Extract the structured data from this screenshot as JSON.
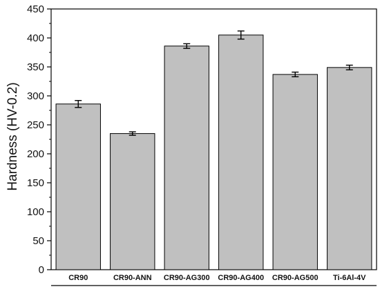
{
  "chart_data": {
    "type": "bar",
    "title": "",
    "xlabel": "",
    "ylabel": "Hardness (HV-0.2)",
    "categories": [
      "CR90",
      "CR90-ANN",
      "CR90-AG300",
      "CR90-AG400",
      "CR90-AG500",
      "Ti-6Al-4V"
    ],
    "values": [
      286,
      235,
      386,
      405,
      337,
      349
    ],
    "errors": [
      6,
      3,
      4,
      7,
      4,
      4
    ],
    "ylim": [
      0,
      450
    ],
    "yticks": [
      0,
      50,
      100,
      150,
      200,
      250,
      300,
      350,
      400,
      450
    ],
    "ytick_labels": [
      "0",
      "50",
      "100",
      "150",
      "200",
      "250",
      "300",
      "350",
      "400",
      "450"
    ],
    "grid": false,
    "legend": "none",
    "bar_color": "#c0c0c0",
    "edge_color": "#000000"
  }
}
